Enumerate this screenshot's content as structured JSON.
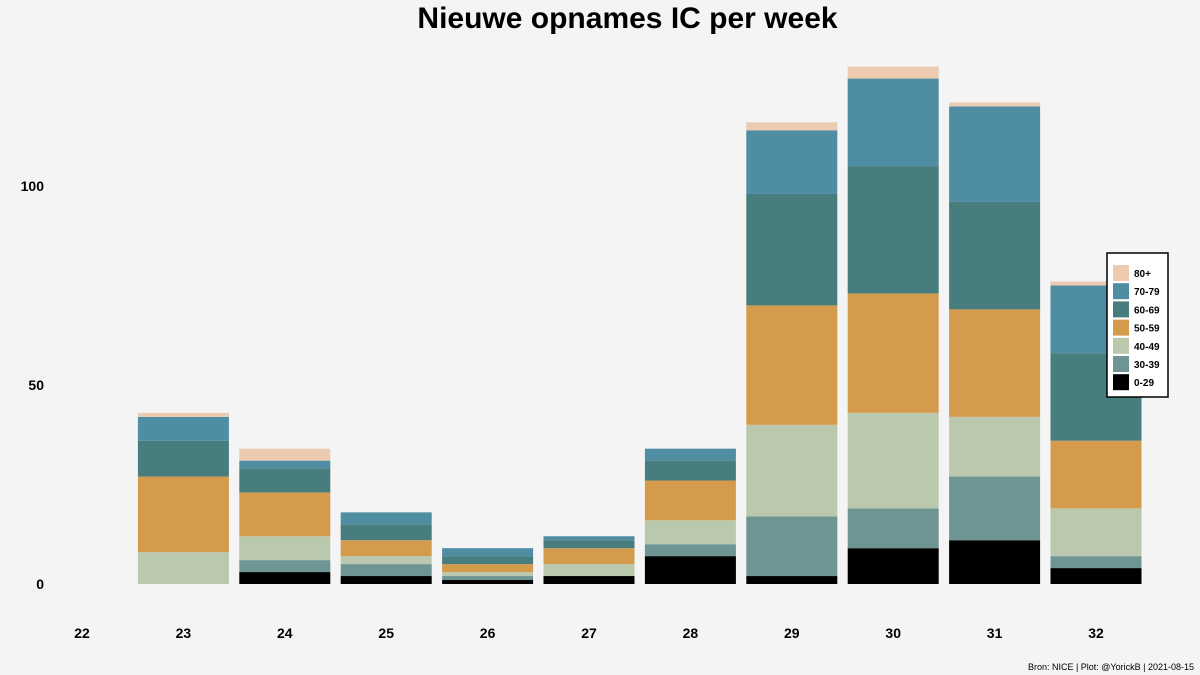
{
  "chart_data": {
    "type": "bar",
    "stacked": true,
    "title": "Nieuwe opnames IC per week",
    "xlabel": "",
    "ylabel": "",
    "categories": [
      "22",
      "23",
      "24",
      "25",
      "26",
      "27",
      "28",
      "29",
      "30",
      "31",
      "32"
    ],
    "y_ticks": [
      0,
      50,
      100
    ],
    "ylim": [
      0,
      135
    ],
    "grid": false,
    "legend_position": "right",
    "series": [
      {
        "name": "0-29",
        "color": "#000000",
        "values": [
          0,
          0,
          3,
          2,
          1,
          2,
          7,
          2,
          9,
          11,
          4
        ]
      },
      {
        "name": "30-39",
        "color": "#6f9494",
        "values": [
          0,
          0,
          3,
          3,
          1,
          0,
          3,
          15,
          10,
          16,
          3
        ]
      },
      {
        "name": "40-49",
        "color": "#bac8ae",
        "values": [
          0,
          8,
          6,
          2,
          1,
          3,
          6,
          23,
          24,
          15,
          12
        ]
      },
      {
        "name": "50-59",
        "color": "#d49b4c",
        "values": [
          0,
          19,
          11,
          4,
          2,
          4,
          10,
          30,
          30,
          27,
          17
        ]
      },
      {
        "name": "60-69",
        "color": "#487d7e",
        "values": [
          0,
          9,
          6,
          4,
          2,
          2,
          5,
          28,
          32,
          27,
          22
        ]
      },
      {
        "name": "70-79",
        "color": "#4f8da3",
        "values": [
          0,
          6,
          2,
          3,
          2,
          1,
          3,
          16,
          22,
          24,
          17
        ]
      },
      {
        "name": "80+",
        "color": "#eccbb0",
        "values": [
          0,
          1,
          3,
          0,
          0,
          0,
          0,
          2,
          3,
          1,
          1
        ]
      }
    ]
  },
  "legend_order": [
    "80+",
    "70-79",
    "60-69",
    "50-59",
    "40-49",
    "30-39",
    "0-29"
  ],
  "caption": "Bron: NICE | Plot: @YorickB |  2021-08-15"
}
